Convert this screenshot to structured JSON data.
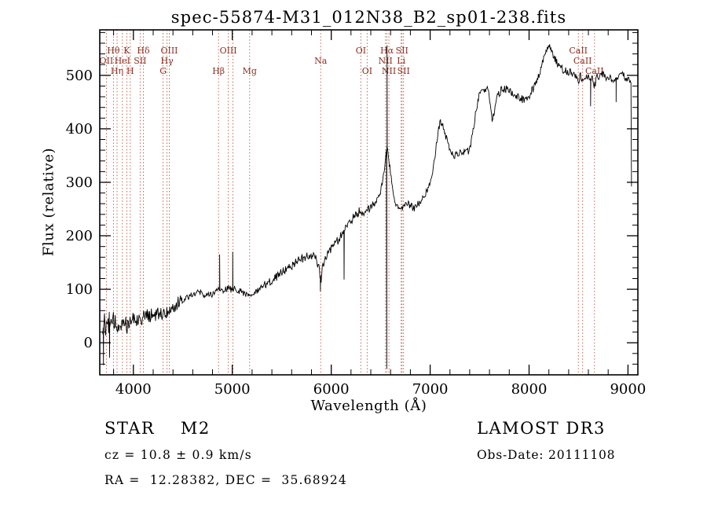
{
  "annotations": {
    "class_label": "STAR    M2",
    "cz": "cz = 10.8 ± 0.9 km/s",
    "radec": "RA =  12.28382, DEC =  35.68924",
    "survey": "LAMOST DR3",
    "obs_date": "Obs-Date: 20111108"
  },
  "chart_data": {
    "type": "line",
    "title": "spec-55874-M31_012N38_B2_sp01-238.fits",
    "xlabel": "Wavelength (Å)",
    "ylabel": "Flux (relative)",
    "xlim": [
      3660,
      9100
    ],
    "ylim": [
      -60,
      585
    ],
    "xticks": [
      4000,
      5000,
      6000,
      7000,
      8000,
      9000
    ],
    "yticks": [
      0,
      100,
      200,
      300,
      400,
      500
    ],
    "x_minor_step": 200,
    "y_minor_step": 20,
    "grid": false,
    "legend": "none",
    "axis_color": "#000000",
    "spectrum_color": "#000000",
    "line_marker_color": "#bb5544",
    "line_label_color": "#8b2e20",
    "noise_seed": 12,
    "sample_step": 6,
    "envelope": [
      [
        3690,
        25
      ],
      [
        3710,
        38
      ],
      [
        3730,
        30
      ],
      [
        3755,
        40
      ],
      [
        3780,
        32
      ],
      [
        3805,
        38
      ],
      [
        3830,
        32
      ],
      [
        3855,
        42
      ],
      [
        3880,
        36
      ],
      [
        3905,
        44
      ],
      [
        3930,
        36
      ],
      [
        3955,
        42
      ],
      [
        3980,
        44
      ],
      [
        4005,
        48
      ],
      [
        4030,
        42
      ],
      [
        4055,
        50
      ],
      [
        4080,
        44
      ],
      [
        4105,
        48
      ],
      [
        4130,
        52
      ],
      [
        4160,
        48
      ],
      [
        4195,
        54
      ],
      [
        4230,
        50
      ],
      [
        4265,
        56
      ],
      [
        4300,
        54
      ],
      [
        4335,
        58
      ],
      [
        4370,
        62
      ],
      [
        4405,
        66
      ],
      [
        4440,
        72
      ],
      [
        4475,
        78
      ],
      [
        4510,
        82
      ],
      [
        4545,
        86
      ],
      [
        4580,
        90
      ],
      [
        4615,
        93
      ],
      [
        4650,
        95
      ],
      [
        4685,
        93
      ],
      [
        4720,
        90
      ],
      [
        4755,
        88
      ],
      [
        4790,
        91
      ],
      [
        4825,
        96
      ],
      [
        4861,
        99
      ],
      [
        4895,
        97
      ],
      [
        4930,
        100
      ],
      [
        4965,
        101
      ],
      [
        5000,
        99
      ],
      [
        5035,
        101
      ],
      [
        5070,
        98
      ],
      [
        5105,
        95
      ],
      [
        5140,
        91
      ],
      [
        5175,
        87
      ],
      [
        5210,
        91
      ],
      [
        5245,
        95
      ],
      [
        5280,
        99
      ],
      [
        5330,
        108
      ],
      [
        5370,
        114
      ],
      [
        5410,
        118
      ],
      [
        5450,
        124
      ],
      [
        5490,
        132
      ],
      [
        5530,
        136
      ],
      [
        5570,
        141
      ],
      [
        5610,
        145
      ],
      [
        5650,
        152
      ],
      [
        5690,
        156
      ],
      [
        5730,
        159
      ],
      [
        5770,
        162
      ],
      [
        5810,
        163
      ],
      [
        5850,
        158
      ],
      [
        5880,
        135
      ],
      [
        5895,
        115
      ],
      [
        5910,
        140
      ],
      [
        5940,
        160
      ],
      [
        5980,
        172
      ],
      [
        6020,
        180
      ],
      [
        6060,
        190
      ],
      [
        6100,
        200
      ],
      [
        6140,
        212
      ],
      [
        6180,
        224
      ],
      [
        6220,
        234
      ],
      [
        6260,
        240
      ],
      [
        6290,
        248
      ],
      [
        6310,
        243
      ],
      [
        6340,
        240
      ],
      [
        6370,
        248
      ],
      [
        6400,
        253
      ],
      [
        6430,
        259
      ],
      [
        6460,
        267
      ],
      [
        6490,
        278
      ],
      [
        6515,
        295
      ],
      [
        6535,
        320
      ],
      [
        6550,
        345
      ],
      [
        6563,
        368
      ],
      [
        6578,
        350
      ],
      [
        6595,
        325
      ],
      [
        6615,
        295
      ],
      [
        6635,
        272
      ],
      [
        6660,
        258
      ],
      [
        6690,
        250
      ],
      [
        6720,
        252
      ],
      [
        6750,
        255
      ],
      [
        6780,
        258
      ],
      [
        6810,
        256
      ],
      [
        6840,
        252
      ],
      [
        6870,
        258
      ],
      [
        6900,
        264
      ],
      [
        6930,
        272
      ],
      [
        6960,
        282
      ],
      [
        6990,
        296
      ],
      [
        7020,
        318
      ],
      [
        7050,
        350
      ],
      [
        7080,
        395
      ],
      [
        7105,
        415
      ],
      [
        7130,
        405
      ],
      [
        7160,
        385
      ],
      [
        7190,
        368
      ],
      [
        7220,
        355
      ],
      [
        7250,
        350
      ],
      [
        7280,
        352
      ],
      [
        7310,
        355
      ],
      [
        7340,
        358
      ],
      [
        7370,
        358
      ],
      [
        7400,
        360
      ],
      [
        7430,
        390
      ],
      [
        7460,
        430
      ],
      [
        7490,
        460
      ],
      [
        7520,
        470
      ],
      [
        7550,
        475
      ],
      [
        7580,
        472
      ],
      [
        7605,
        455
      ],
      [
        7625,
        420
      ],
      [
        7645,
        430
      ],
      [
        7665,
        450
      ],
      [
        7690,
        465
      ],
      [
        7720,
        472
      ],
      [
        7750,
        475
      ],
      [
        7780,
        473
      ],
      [
        7810,
        470
      ],
      [
        7840,
        466
      ],
      [
        7870,
        462
      ],
      [
        7900,
        458
      ],
      [
        7930,
        455
      ],
      [
        7960,
        456
      ],
      [
        7990,
        460
      ],
      [
        8020,
        468
      ],
      [
        8050,
        478
      ],
      [
        8090,
        495
      ],
      [
        8130,
        520
      ],
      [
        8170,
        542
      ],
      [
        8200,
        553
      ],
      [
        8230,
        545
      ],
      [
        8260,
        532
      ],
      [
        8290,
        520
      ],
      [
        8320,
        514
      ],
      [
        8350,
        510
      ],
      [
        8380,
        508
      ],
      [
        8410,
        506
      ],
      [
        8440,
        504
      ],
      [
        8470,
        498
      ],
      [
        8498,
        486
      ],
      [
        8520,
        500
      ],
      [
        8542,
        484
      ],
      [
        8565,
        500
      ],
      [
        8590,
        498
      ],
      [
        8615,
        494
      ],
      [
        8640,
        492
      ],
      [
        8662,
        480
      ],
      [
        8685,
        496
      ],
      [
        8710,
        500
      ],
      [
        8740,
        502
      ],
      [
        8770,
        498
      ],
      [
        8800,
        496
      ],
      [
        8830,
        492
      ],
      [
        8860,
        494
      ],
      [
        8890,
        496
      ],
      [
        8920,
        498
      ],
      [
        8950,
        500
      ],
      [
        8980,
        496
      ],
      [
        9010,
        492
      ],
      [
        9030,
        488
      ],
      [
        9040,
        165
      ]
    ],
    "noise_segments": [
      {
        "from": 3660,
        "to": 3960,
        "amp": 21
      },
      {
        "from": 3960,
        "to": 4480,
        "amp": 13
      },
      {
        "from": 4480,
        "to": 5320,
        "amp": 6.5
      },
      {
        "from": 5320,
        "to": 6480,
        "amp": 8
      },
      {
        "from": 6480,
        "to": 6700,
        "amp": 6
      },
      {
        "from": 6700,
        "to": 7450,
        "amp": 7
      },
      {
        "from": 7450,
        "to": 9050,
        "amp": 7.5
      }
    ],
    "spikes": [
      {
        "x": 3697,
        "y": -42
      },
      {
        "x": 3759,
        "y": -28
      },
      {
        "x": 4872,
        "y": 165
      },
      {
        "x": 5004,
        "y": 170
      },
      {
        "x": 5891,
        "y": 96
      },
      {
        "x": 6130,
        "y": 118
      },
      {
        "x": 6561,
        "y": -48
      },
      {
        "x": 6564,
        "y": 556
      },
      {
        "x": 8622,
        "y": 442
      },
      {
        "x": 8880,
        "y": 450
      }
    ],
    "spectral_lines": [
      {
        "label": "OII",
        "x": 3727,
        "row": 2
      },
      {
        "label": "Hθ",
        "x": 3798,
        "row": 1
      },
      {
        "label": "Hη",
        "x": 3835,
        "row": 3
      },
      {
        "label": "HeI",
        "x": 3889,
        "row": 2
      },
      {
        "label": "K",
        "x": 3933,
        "row": 1
      },
      {
        "label": "H",
        "x": 3968,
        "row": 3
      },
      {
        "label": "SII",
        "x": 4068,
        "row": 2
      },
      {
        "label": "Hδ",
        "x": 4101,
        "row": 1
      },
      {
        "label": "G",
        "x": 4300,
        "row": 3
      },
      {
        "label": "Hγ",
        "x": 4340,
        "row": 2
      },
      {
        "label": "OIII",
        "x": 4363,
        "row": 1
      },
      {
        "label": "Hβ",
        "x": 4861,
        "row": 3
      },
      {
        "label": "OIII",
        "x": 4959,
        "row": 1
      },
      {
        "label": "",
        "x": 5007,
        "row": 1
      },
      {
        "label": "Mg",
        "x": 5175,
        "row": 3
      },
      {
        "label": "Na",
        "x": 5893,
        "row": 2
      },
      {
        "label": "OI",
        "x": 6300,
        "row": 1
      },
      {
        "label": "OI",
        "x": 6363,
        "row": 3
      },
      {
        "label": "NII",
        "x": 6548,
        "row": 2
      },
      {
        "label": "Hα",
        "x": 6563,
        "row": 1
      },
      {
        "label": "NII",
        "x": 6583,
        "row": 3
      },
      {
        "label": "Li",
        "x": 6707,
        "row": 2
      },
      {
        "label": "SII",
        "x": 6716,
        "row": 1
      },
      {
        "label": "SII",
        "x": 6731,
        "row": 3
      },
      {
        "label": "CaII",
        "x": 8498,
        "row": 1
      },
      {
        "label": "CaII",
        "x": 8542,
        "row": 2
      },
      {
        "label": "CaII",
        "x": 8662,
        "row": 3
      }
    ]
  }
}
